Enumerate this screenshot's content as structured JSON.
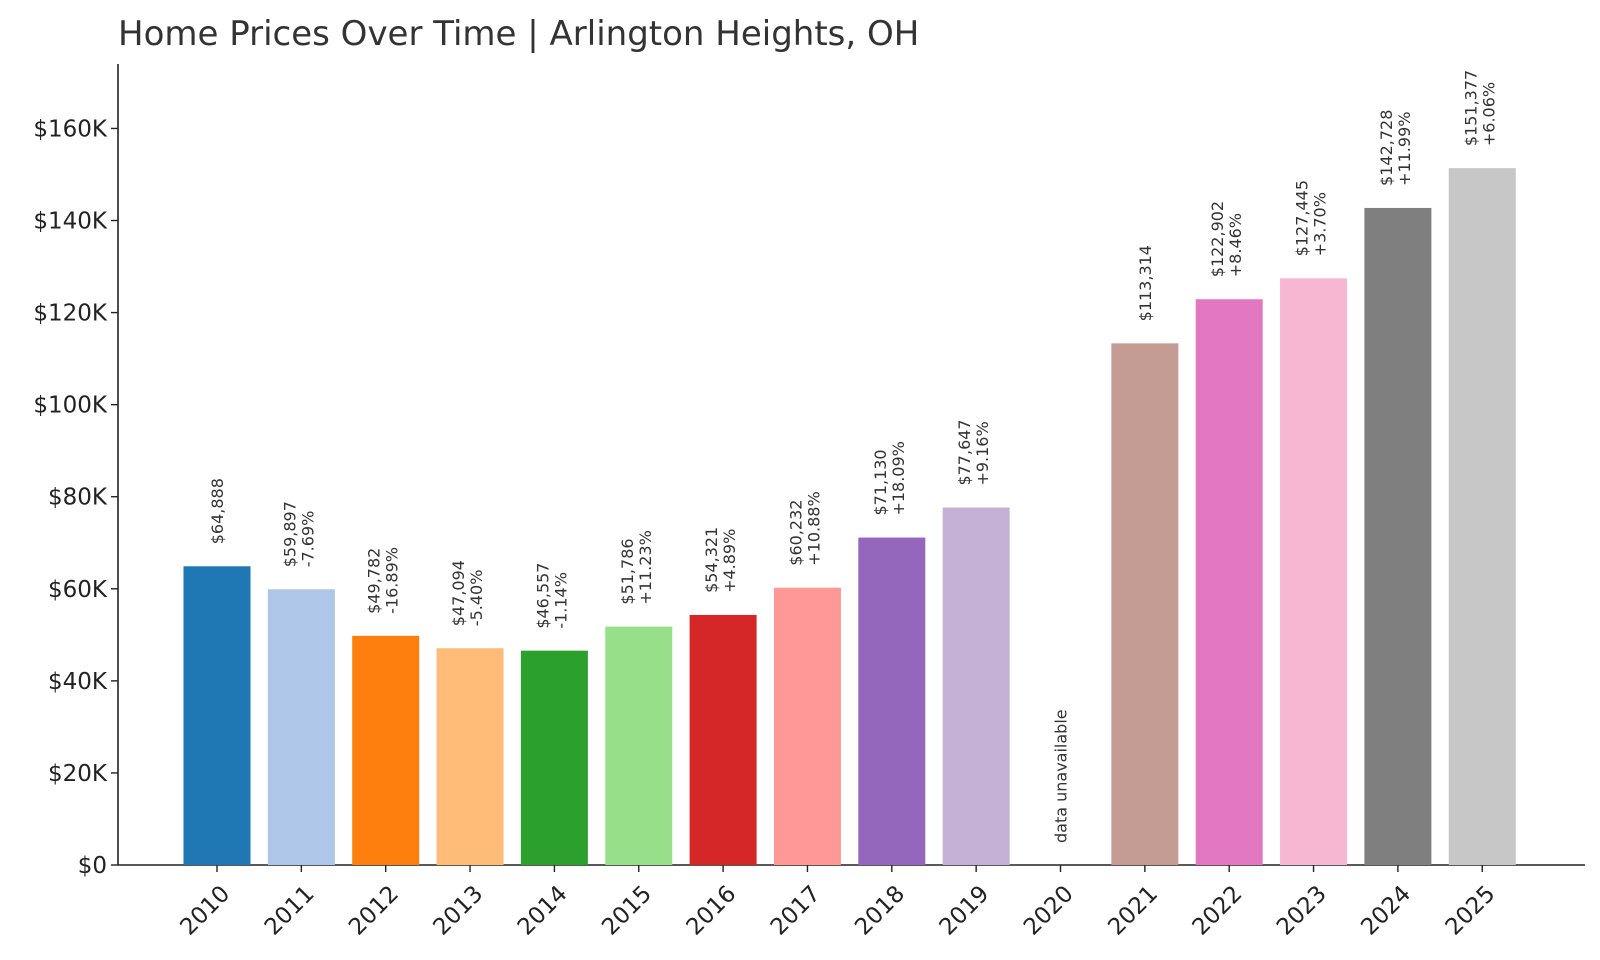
{
  "chart_data": {
    "type": "bar",
    "title": "Home Prices Over Time | Arlington Heights, OH",
    "xlabel": "",
    "ylabel": "",
    "ylim": [
      0,
      174000
    ],
    "y_ticks": [
      0,
      20000,
      40000,
      60000,
      80000,
      100000,
      120000,
      140000,
      160000
    ],
    "y_tick_labels": [
      "$0",
      "$20K",
      "$40K",
      "$60K",
      "$80K",
      "$100K",
      "$120K",
      "$140K",
      "$160K"
    ],
    "grid": false,
    "legend": "none",
    "categories": [
      "2010",
      "2011",
      "2012",
      "2013",
      "2014",
      "2015",
      "2016",
      "2017",
      "2018",
      "2019",
      "2020",
      "2021",
      "2022",
      "2023",
      "2024",
      "2025"
    ],
    "values": [
      64888,
      59897,
      49782,
      47094,
      46557,
      51786,
      54321,
      60232,
      71130,
      77647,
      null,
      113314,
      122902,
      127445,
      142728,
      151377
    ],
    "value_labels": [
      "$64,888",
      "$59,897",
      "$49,782",
      "$47,094",
      "$46,557",
      "$51,786",
      "$54,321",
      "$60,232",
      "$71,130",
      "$77,647",
      "data unavailable",
      "$113,314",
      "$122,902",
      "$127,445",
      "$142,728",
      "$151,377"
    ],
    "change_labels": [
      "",
      "-7.69%",
      "-16.89%",
      "-5.40%",
      "-1.14%",
      "+11.23%",
      "+4.89%",
      "+10.88%",
      "+18.09%",
      "+9.16%",
      "",
      "",
      "+8.46%",
      "+3.70%",
      "+11.99%",
      "+6.06%"
    ],
    "colors": [
      "#1f77b4",
      "#aec7e8",
      "#ff7f0e",
      "#ffbb78",
      "#2ca02c",
      "#98df8a",
      "#d62728",
      "#ff9896",
      "#9467bd",
      "#c5b0d5",
      "#8c564b",
      "#c49c94",
      "#e377c2",
      "#f7b6d2",
      "#7f7f7f",
      "#c7c7c7"
    ]
  }
}
